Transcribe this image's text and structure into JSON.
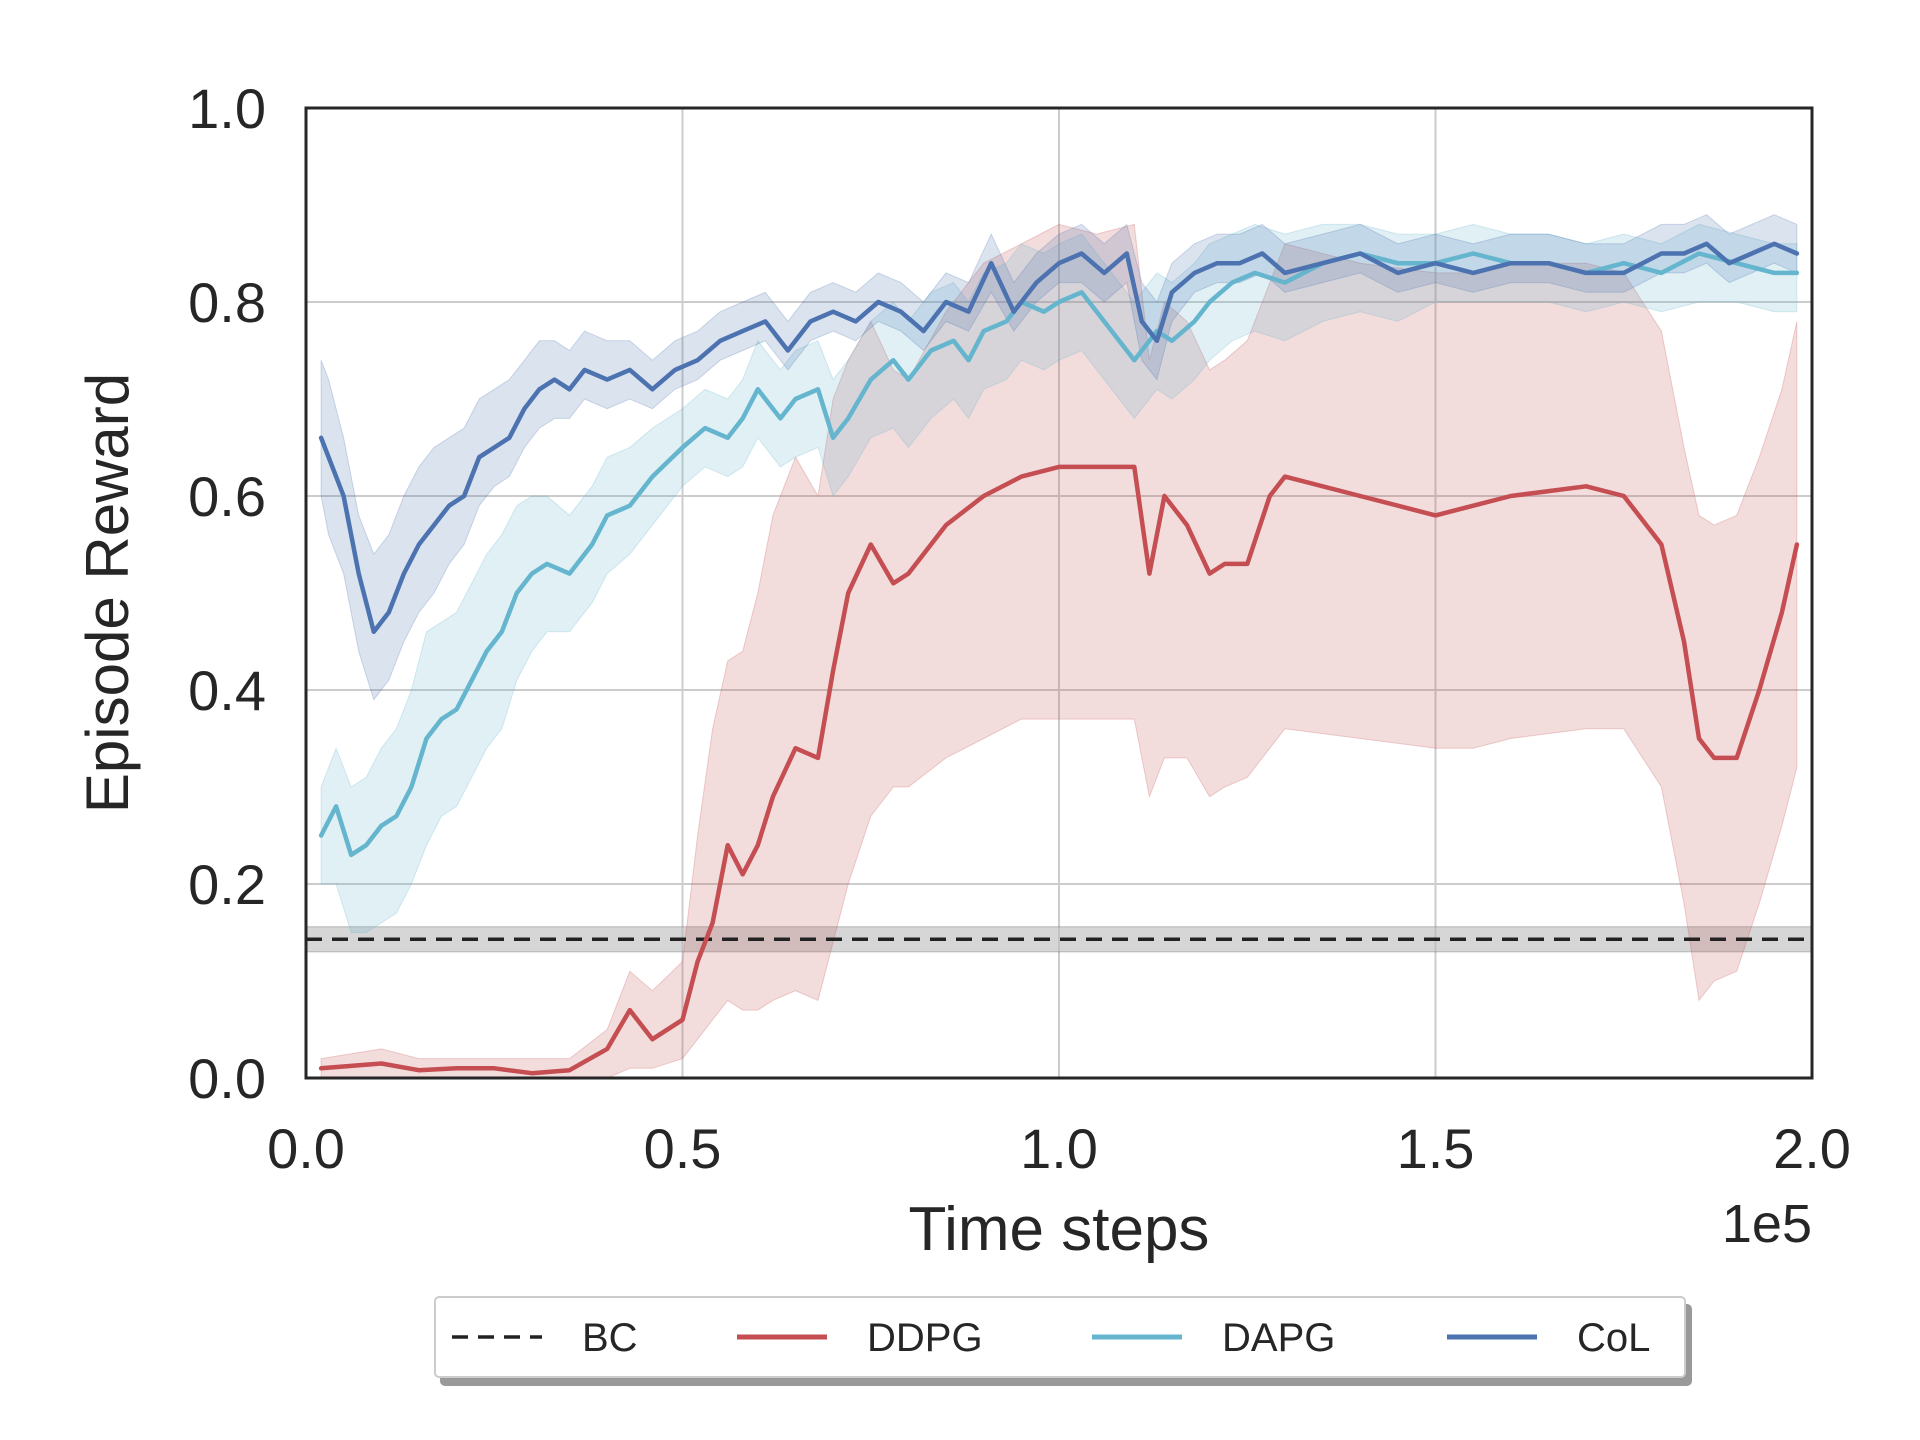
{
  "chart_data": {
    "type": "line",
    "title": "",
    "xlabel": "Time steps",
    "ylabel": "Episode Reward",
    "x_offset_label": "1e5",
    "xlim": [
      0,
      2.0
    ],
    "ylim": [
      0,
      1.0
    ],
    "x_ticks": [
      0,
      0.5,
      1.0,
      1.5,
      2.0
    ],
    "x_tick_labels": [
      "0.0",
      "0.5",
      "1.0",
      "1.5",
      "2.0"
    ],
    "y_ticks": [
      0,
      0.2,
      0.4,
      0.6,
      0.8,
      1.0
    ],
    "y_tick_labels": [
      "0.0",
      "0.2",
      "0.4",
      "0.6",
      "0.8",
      "1.0"
    ],
    "grid": true,
    "legend_position": "below",
    "series": [
      {
        "name": "BC",
        "color": "#222222",
        "style": "dashed",
        "x": [
          0.0,
          2.0
        ],
        "values": [
          0.143,
          0.143
        ],
        "lower": [
          0.13,
          0.13
        ],
        "upper": [
          0.156,
          0.156
        ]
      },
      {
        "name": "DDPG",
        "color": "#c44e52",
        "style": "solid",
        "x": [
          0.02,
          0.1,
          0.15,
          0.2,
          0.25,
          0.3,
          0.35,
          0.4,
          0.43,
          0.46,
          0.5,
          0.52,
          0.54,
          0.56,
          0.58,
          0.6,
          0.62,
          0.65,
          0.68,
          0.7,
          0.72,
          0.75,
          0.78,
          0.8,
          0.85,
          0.9,
          0.95,
          1.0,
          1.05,
          1.1,
          1.12,
          1.14,
          1.17,
          1.2,
          1.22,
          1.25,
          1.28,
          1.3,
          1.4,
          1.5,
          1.55,
          1.6,
          1.7,
          1.75,
          1.8,
          1.83,
          1.85,
          1.87,
          1.9,
          1.93,
          1.96,
          1.98
        ],
        "values": [
          0.01,
          0.015,
          0.008,
          0.01,
          0.01,
          0.005,
          0.008,
          0.03,
          0.07,
          0.04,
          0.06,
          0.12,
          0.16,
          0.24,
          0.21,
          0.24,
          0.29,
          0.34,
          0.33,
          0.42,
          0.5,
          0.55,
          0.51,
          0.52,
          0.57,
          0.6,
          0.62,
          0.63,
          0.63,
          0.63,
          0.52,
          0.6,
          0.57,
          0.52,
          0.53,
          0.53,
          0.6,
          0.62,
          0.6,
          0.58,
          0.59,
          0.6,
          0.61,
          0.6,
          0.55,
          0.45,
          0.35,
          0.33,
          0.33,
          0.4,
          0.48,
          0.55
        ],
        "lower": [
          0.0,
          0.0,
          0.0,
          0.0,
          0.0,
          0.0,
          0.0,
          0.0,
          0.01,
          0.01,
          0.02,
          0.04,
          0.06,
          0.08,
          0.07,
          0.07,
          0.08,
          0.09,
          0.08,
          0.14,
          0.2,
          0.27,
          0.3,
          0.3,
          0.33,
          0.35,
          0.37,
          0.37,
          0.37,
          0.37,
          0.29,
          0.33,
          0.33,
          0.29,
          0.3,
          0.31,
          0.34,
          0.36,
          0.35,
          0.34,
          0.34,
          0.35,
          0.36,
          0.36,
          0.3,
          0.18,
          0.08,
          0.1,
          0.11,
          0.18,
          0.26,
          0.32
        ],
        "upper": [
          0.02,
          0.03,
          0.02,
          0.02,
          0.02,
          0.02,
          0.02,
          0.05,
          0.11,
          0.09,
          0.12,
          0.25,
          0.36,
          0.43,
          0.44,
          0.5,
          0.58,
          0.64,
          0.6,
          0.7,
          0.74,
          0.78,
          0.73,
          0.72,
          0.79,
          0.84,
          0.86,
          0.88,
          0.87,
          0.88,
          0.74,
          0.8,
          0.78,
          0.73,
          0.74,
          0.76,
          0.82,
          0.86,
          0.84,
          0.83,
          0.83,
          0.84,
          0.84,
          0.83,
          0.77,
          0.65,
          0.58,
          0.57,
          0.58,
          0.64,
          0.71,
          0.78
        ]
      },
      {
        "name": "DAPG",
        "color": "#64b5cd",
        "style": "solid",
        "x": [
          0.02,
          0.04,
          0.06,
          0.08,
          0.1,
          0.12,
          0.14,
          0.16,
          0.18,
          0.2,
          0.22,
          0.24,
          0.26,
          0.28,
          0.3,
          0.32,
          0.35,
          0.38,
          0.4,
          0.43,
          0.46,
          0.5,
          0.53,
          0.56,
          0.58,
          0.6,
          0.63,
          0.65,
          0.68,
          0.7,
          0.72,
          0.75,
          0.78,
          0.8,
          0.83,
          0.86,
          0.88,
          0.9,
          0.93,
          0.95,
          0.98,
          1.0,
          1.03,
          1.05,
          1.08,
          1.1,
          1.13,
          1.15,
          1.18,
          1.2,
          1.23,
          1.26,
          1.3,
          1.35,
          1.4,
          1.45,
          1.5,
          1.55,
          1.6,
          1.65,
          1.7,
          1.75,
          1.8,
          1.85,
          1.9,
          1.95,
          1.98
        ],
        "values": [
          0.25,
          0.28,
          0.23,
          0.24,
          0.26,
          0.27,
          0.3,
          0.35,
          0.37,
          0.38,
          0.41,
          0.44,
          0.46,
          0.5,
          0.52,
          0.53,
          0.52,
          0.55,
          0.58,
          0.59,
          0.62,
          0.65,
          0.67,
          0.66,
          0.68,
          0.71,
          0.68,
          0.7,
          0.71,
          0.66,
          0.68,
          0.72,
          0.74,
          0.72,
          0.75,
          0.76,
          0.74,
          0.77,
          0.78,
          0.8,
          0.79,
          0.8,
          0.81,
          0.79,
          0.76,
          0.74,
          0.77,
          0.76,
          0.78,
          0.8,
          0.82,
          0.83,
          0.82,
          0.84,
          0.85,
          0.84,
          0.84,
          0.85,
          0.84,
          0.84,
          0.83,
          0.84,
          0.83,
          0.85,
          0.84,
          0.83,
          0.83
        ],
        "lower": [
          0.2,
          0.2,
          0.15,
          0.15,
          0.16,
          0.17,
          0.2,
          0.24,
          0.27,
          0.28,
          0.31,
          0.34,
          0.36,
          0.41,
          0.44,
          0.46,
          0.46,
          0.49,
          0.52,
          0.54,
          0.57,
          0.61,
          0.63,
          0.62,
          0.63,
          0.66,
          0.63,
          0.64,
          0.65,
          0.6,
          0.62,
          0.66,
          0.67,
          0.65,
          0.68,
          0.7,
          0.68,
          0.71,
          0.72,
          0.74,
          0.73,
          0.74,
          0.75,
          0.73,
          0.7,
          0.68,
          0.71,
          0.7,
          0.72,
          0.74,
          0.76,
          0.77,
          0.76,
          0.78,
          0.79,
          0.78,
          0.8,
          0.8,
          0.8,
          0.8,
          0.79,
          0.8,
          0.79,
          0.8,
          0.8,
          0.79,
          0.79
        ],
        "upper": [
          0.3,
          0.34,
          0.3,
          0.31,
          0.34,
          0.36,
          0.4,
          0.46,
          0.47,
          0.48,
          0.51,
          0.54,
          0.56,
          0.59,
          0.6,
          0.6,
          0.58,
          0.61,
          0.64,
          0.65,
          0.67,
          0.69,
          0.71,
          0.7,
          0.72,
          0.76,
          0.73,
          0.75,
          0.76,
          0.72,
          0.74,
          0.78,
          0.8,
          0.78,
          0.81,
          0.82,
          0.8,
          0.83,
          0.84,
          0.86,
          0.85,
          0.86,
          0.87,
          0.85,
          0.82,
          0.8,
          0.83,
          0.82,
          0.84,
          0.86,
          0.87,
          0.88,
          0.87,
          0.88,
          0.88,
          0.87,
          0.87,
          0.88,
          0.87,
          0.87,
          0.86,
          0.87,
          0.86,
          0.88,
          0.87,
          0.86,
          0.86
        ]
      },
      {
        "name": "CoL",
        "color": "#4c72b0",
        "style": "solid",
        "x": [
          0.02,
          0.03,
          0.05,
          0.07,
          0.09,
          0.11,
          0.13,
          0.15,
          0.17,
          0.19,
          0.21,
          0.23,
          0.25,
          0.27,
          0.29,
          0.31,
          0.33,
          0.35,
          0.37,
          0.4,
          0.43,
          0.46,
          0.49,
          0.52,
          0.55,
          0.58,
          0.61,
          0.64,
          0.67,
          0.7,
          0.73,
          0.76,
          0.79,
          0.82,
          0.85,
          0.88,
          0.91,
          0.94,
          0.97,
          1.0,
          1.03,
          1.06,
          1.09,
          1.11,
          1.13,
          1.15,
          1.18,
          1.21,
          1.24,
          1.27,
          1.3,
          1.35,
          1.4,
          1.45,
          1.5,
          1.55,
          1.6,
          1.65,
          1.7,
          1.75,
          1.8,
          1.83,
          1.86,
          1.89,
          1.92,
          1.95,
          1.98
        ],
        "values": [
          0.66,
          0.64,
          0.6,
          0.52,
          0.46,
          0.48,
          0.52,
          0.55,
          0.57,
          0.59,
          0.6,
          0.64,
          0.65,
          0.66,
          0.69,
          0.71,
          0.72,
          0.71,
          0.73,
          0.72,
          0.73,
          0.71,
          0.73,
          0.74,
          0.76,
          0.77,
          0.78,
          0.75,
          0.78,
          0.79,
          0.78,
          0.8,
          0.79,
          0.77,
          0.8,
          0.79,
          0.84,
          0.79,
          0.82,
          0.84,
          0.85,
          0.83,
          0.85,
          0.78,
          0.76,
          0.81,
          0.83,
          0.84,
          0.84,
          0.85,
          0.83,
          0.84,
          0.85,
          0.83,
          0.84,
          0.83,
          0.84,
          0.84,
          0.83,
          0.83,
          0.85,
          0.85,
          0.86,
          0.84,
          0.85,
          0.86,
          0.85
        ],
        "lower": [
          0.6,
          0.56,
          0.52,
          0.44,
          0.39,
          0.41,
          0.45,
          0.48,
          0.5,
          0.53,
          0.55,
          0.59,
          0.61,
          0.62,
          0.65,
          0.67,
          0.68,
          0.68,
          0.7,
          0.69,
          0.7,
          0.69,
          0.71,
          0.72,
          0.74,
          0.75,
          0.76,
          0.73,
          0.76,
          0.77,
          0.76,
          0.78,
          0.77,
          0.75,
          0.78,
          0.77,
          0.81,
          0.77,
          0.8,
          0.82,
          0.82,
          0.8,
          0.82,
          0.74,
          0.72,
          0.78,
          0.81,
          0.82,
          0.82,
          0.83,
          0.81,
          0.82,
          0.83,
          0.81,
          0.82,
          0.81,
          0.82,
          0.82,
          0.81,
          0.81,
          0.83,
          0.83,
          0.84,
          0.82,
          0.83,
          0.84,
          0.83
        ],
        "upper": [
          0.74,
          0.72,
          0.66,
          0.58,
          0.54,
          0.56,
          0.6,
          0.63,
          0.65,
          0.66,
          0.67,
          0.7,
          0.71,
          0.72,
          0.74,
          0.76,
          0.76,
          0.75,
          0.77,
          0.76,
          0.76,
          0.74,
          0.76,
          0.77,
          0.79,
          0.8,
          0.81,
          0.78,
          0.81,
          0.82,
          0.81,
          0.83,
          0.82,
          0.8,
          0.83,
          0.82,
          0.87,
          0.82,
          0.85,
          0.87,
          0.88,
          0.86,
          0.88,
          0.82,
          0.8,
          0.84,
          0.86,
          0.87,
          0.87,
          0.88,
          0.86,
          0.87,
          0.88,
          0.86,
          0.87,
          0.86,
          0.87,
          0.87,
          0.86,
          0.86,
          0.88,
          0.88,
          0.89,
          0.87,
          0.88,
          0.89,
          0.88
        ]
      }
    ]
  }
}
